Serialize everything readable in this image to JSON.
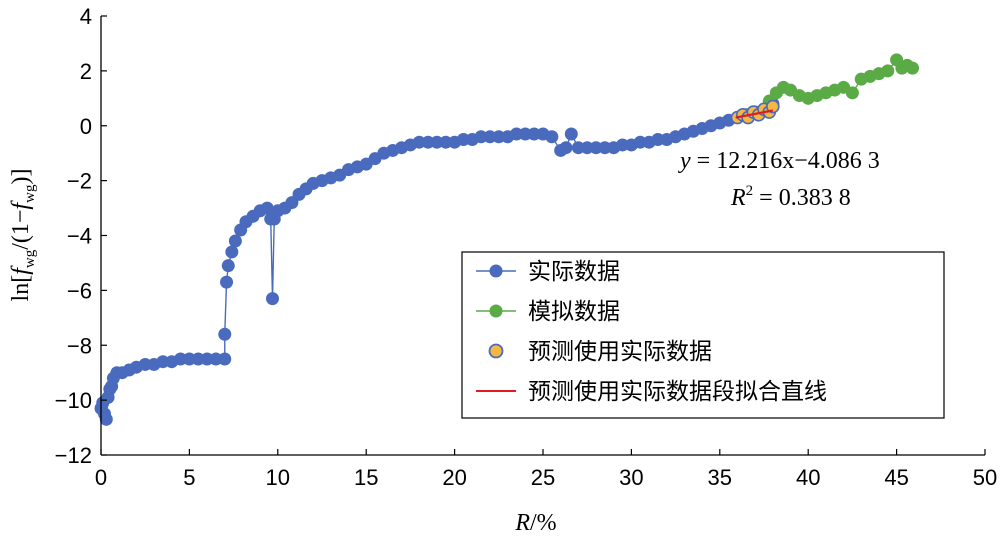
{
  "chart_data": {
    "type": "scatter",
    "xlabel_prefix": "R",
    "xlabel_suffix": "/%",
    "ylabel": "ln[f_wg/(1−f_wg)]",
    "xlim": [
      0,
      50
    ],
    "ylim": [
      -12,
      4
    ],
    "xticks": [
      "0",
      "5",
      "10",
      "15",
      "20",
      "25",
      "30",
      "35",
      "40",
      "45",
      "50"
    ],
    "yticks": [
      "4",
      "2",
      "0",
      "−2",
      "−4",
      "−6",
      "−8",
      "−10",
      "−12"
    ],
    "grid": false,
    "legend_position": "lower-right",
    "equation": {
      "line1_var": "y",
      "line1_rest": " = 12.216x−4.086 3",
      "line2_var": "R",
      "line2_sup": "2",
      "line2_rest": " = 0.383 8"
    },
    "colors": {
      "actual": "#4a6bbd",
      "simulated": "#5aaa46",
      "predict_fill": "#f5b841",
      "predict_edge": "#4a6bbd",
      "fit_line": "#e41a1c"
    },
    "series": [
      {
        "name": "实际数据",
        "marker": "circle",
        "connected": true,
        "x": [
          0.0,
          0.1,
          0.2,
          0.3,
          0.4,
          0.5,
          0.6,
          0.7,
          0.9,
          1.2,
          1.6,
          2.0,
          2.5,
          3.0,
          3.5,
          4.0,
          4.5,
          5.0,
          5.5,
          6.0,
          6.5,
          7.0,
          7.0,
          7.1,
          7.2,
          7.4,
          7.6,
          7.9,
          8.2,
          8.6,
          9.0,
          9.4,
          9.6,
          9.7,
          9.8,
          10.0,
          10.4,
          10.8,
          11.2,
          11.6,
          12.0,
          12.5,
          13.0,
          13.5,
          14.0,
          14.5,
          15.0,
          15.5,
          16.0,
          16.5,
          17.0,
          17.5,
          18.0,
          18.5,
          19.0,
          19.5,
          20.0,
          20.5,
          21.0,
          21.5,
          22.0,
          22.5,
          23.0,
          23.5,
          24.0,
          24.5,
          25.0,
          25.5,
          26.0,
          26.3,
          26.6,
          27.0,
          27.5,
          28.0,
          28.5,
          29.0,
          29.5,
          30.0,
          30.5,
          31.0,
          31.5,
          32.0,
          32.5,
          33.0,
          33.5,
          34.0,
          34.5,
          35.0,
          35.5,
          36.0,
          36.5,
          37.0,
          37.5,
          38.0
        ],
        "y": [
          -10.3,
          -10.1,
          -10.5,
          -10.7,
          -9.9,
          -9.6,
          -9.5,
          -9.2,
          -9.0,
          -9.0,
          -8.9,
          -8.8,
          -8.7,
          -8.7,
          -8.6,
          -8.6,
          -8.5,
          -8.5,
          -8.5,
          -8.5,
          -8.5,
          -8.5,
          -7.6,
          -5.7,
          -5.1,
          -4.6,
          -4.2,
          -3.8,
          -3.5,
          -3.3,
          -3.1,
          -3.0,
          -3.4,
          -6.3,
          -3.4,
          -3.1,
          -3.0,
          -2.8,
          -2.5,
          -2.3,
          -2.1,
          -2.0,
          -1.9,
          -1.8,
          -1.6,
          -1.5,
          -1.4,
          -1.2,
          -1.0,
          -0.9,
          -0.8,
          -0.7,
          -0.6,
          -0.6,
          -0.6,
          -0.6,
          -0.6,
          -0.5,
          -0.5,
          -0.4,
          -0.4,
          -0.4,
          -0.4,
          -0.3,
          -0.3,
          -0.3,
          -0.3,
          -0.4,
          -0.9,
          -0.8,
          -0.3,
          -0.8,
          -0.8,
          -0.8,
          -0.8,
          -0.8,
          -0.7,
          -0.7,
          -0.6,
          -0.6,
          -0.5,
          -0.5,
          -0.4,
          -0.3,
          -0.2,
          -0.1,
          0.0,
          0.1,
          0.2,
          0.3,
          0.4,
          0.5,
          0.6,
          0.8
        ]
      },
      {
        "name": "模拟数据",
        "marker": "circle",
        "connected": true,
        "x": [
          37.8,
          38.2,
          38.6,
          39.0,
          39.5,
          40.0,
          40.5,
          41.0,
          41.5,
          42.0,
          42.5,
          43.0,
          43.5,
          44.0,
          44.5,
          45.0,
          45.3,
          45.6,
          45.9
        ],
        "y": [
          0.9,
          1.2,
          1.4,
          1.3,
          1.1,
          1.0,
          1.1,
          1.2,
          1.3,
          1.4,
          1.2,
          1.7,
          1.8,
          1.9,
          2.0,
          2.4,
          2.1,
          2.2,
          2.1
        ]
      },
      {
        "name": "预测使用实际数据",
        "marker": "circle",
        "connected": false,
        "x": [
          36.0,
          36.3,
          36.6,
          36.9,
          37.2,
          37.5,
          37.8,
          38.0
        ],
        "y": [
          0.3,
          0.4,
          0.3,
          0.5,
          0.4,
          0.6,
          0.5,
          0.7
        ]
      },
      {
        "name": "预测使用实际数据段拟合直线",
        "marker": "line",
        "connected": true,
        "x": [
          35.9,
          38.0
        ],
        "y": [
          0.3,
          0.556
        ]
      }
    ]
  }
}
